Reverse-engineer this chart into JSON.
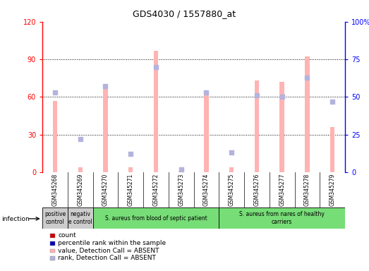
{
  "title": "GDS4030 / 1557880_at",
  "samples": [
    "GSM345268",
    "GSM345269",
    "GSM345270",
    "GSM345271",
    "GSM345272",
    "GSM345273",
    "GSM345274",
    "GSM345275",
    "GSM345276",
    "GSM345277",
    "GSM345278",
    "GSM345279"
  ],
  "absent_value": [
    57,
    4,
    67,
    4,
    97,
    1,
    62,
    4,
    73,
    72,
    92,
    36
  ],
  "absent_rank": [
    53,
    22,
    57,
    12,
    70,
    2,
    53,
    13,
    51,
    50,
    63,
    47
  ],
  "left_ylim": [
    0,
    120
  ],
  "right_ylim": [
    0,
    100
  ],
  "left_yticks": [
    0,
    30,
    60,
    90,
    120
  ],
  "left_yticklabels": [
    "0",
    "30",
    "60",
    "90",
    "120"
  ],
  "right_yticks": [
    0,
    25,
    50,
    75,
    100
  ],
  "right_yticklabels": [
    "0",
    "25",
    "50",
    "75",
    "100%"
  ],
  "groups": [
    {
      "label": "positive\ncontrol",
      "start": 0,
      "end": 1,
      "color": "#cccccc"
    },
    {
      "label": "negativ\ne control",
      "start": 1,
      "end": 2,
      "color": "#cccccc"
    },
    {
      "label": "S. aureus from blood of septic patient",
      "start": 2,
      "end": 7,
      "color": "#77dd77"
    },
    {
      "label": "S. aureus from nares of healthy\ncarriers",
      "start": 7,
      "end": 12,
      "color": "#77dd77"
    }
  ],
  "infection_label": "infection",
  "bar_color_absent_value": "#ffb3b3",
  "bar_color_absent_rank": "#b3b3dd",
  "dot_color_count": "#cc0000",
  "dot_color_rank": "#0000bb",
  "legend_items": [
    {
      "label": "count",
      "color": "#cc0000"
    },
    {
      "label": "percentile rank within the sample",
      "color": "#0000bb"
    },
    {
      "label": "value, Detection Call = ABSENT",
      "color": "#ffb3b3"
    },
    {
      "label": "rank, Detection Call = ABSENT",
      "color": "#b3b3dd"
    }
  ],
  "background_color": "#ffffff",
  "sample_area_color": "#cccccc",
  "bar_width": 0.18
}
